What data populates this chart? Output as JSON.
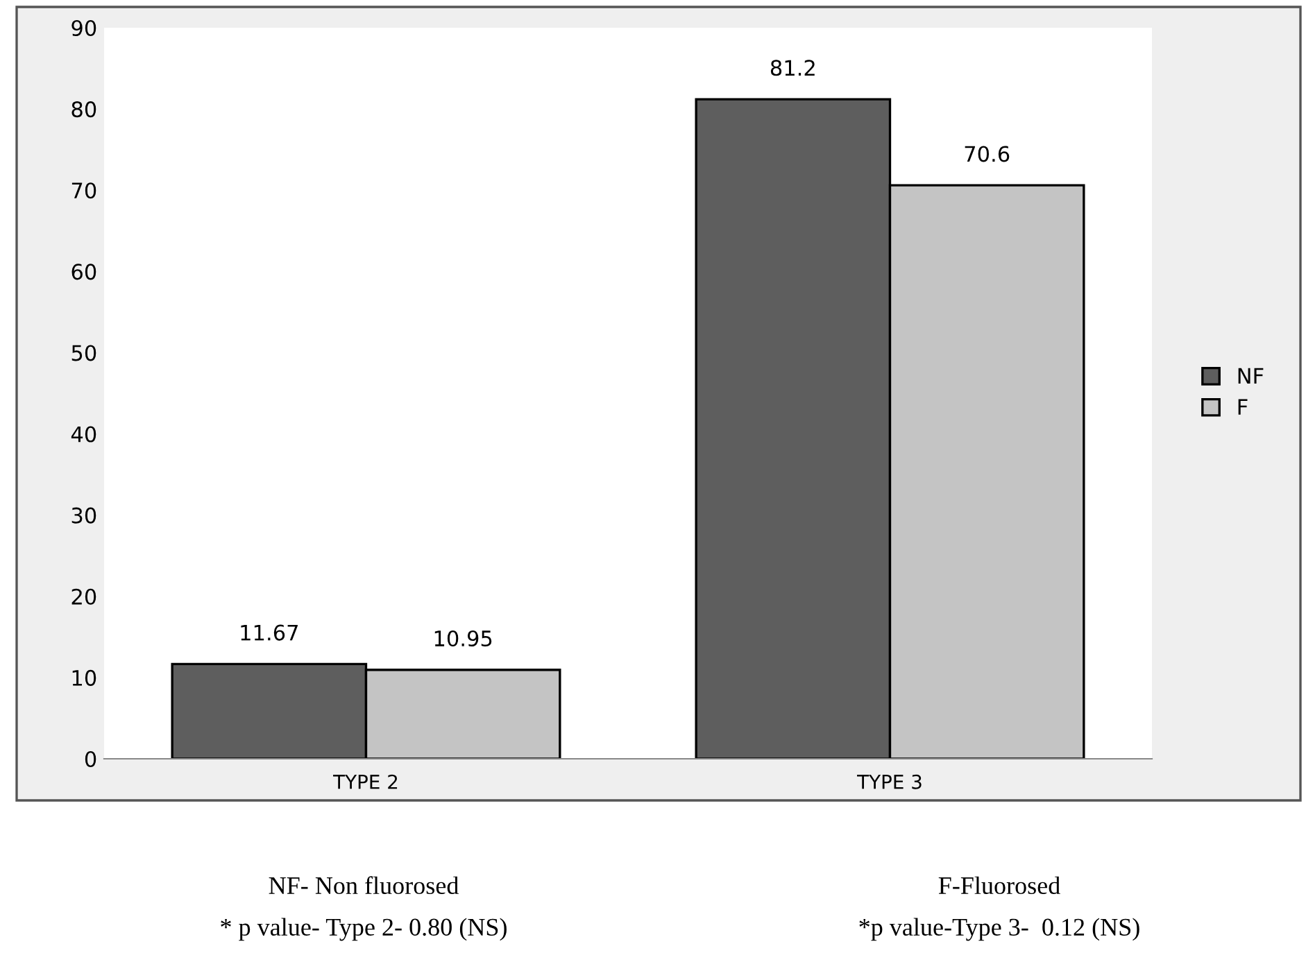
{
  "chart_data": {
    "type": "bar",
    "categories": [
      "TYPE 2",
      "TYPE 3"
    ],
    "series": [
      {
        "name": "NF",
        "color": "#5e5e5e",
        "values": [
          11.67,
          81.2
        ]
      },
      {
        "name": "F",
        "color": "#c4c4c4",
        "values": [
          10.95,
          70.6
        ]
      }
    ],
    "ylim": [
      0,
      90
    ],
    "yticks": [
      0,
      10,
      20,
      30,
      40,
      50,
      60,
      70,
      80,
      90
    ],
    "grid": false,
    "legend": "right",
    "data_labels": true,
    "annotations": [
      "NF- Non fluorosed",
      "* p value- Type 2- 0.80 (NS)",
      "F-Fluorosed",
      "*p value-Type 3-  0.12 (NS)"
    ]
  }
}
